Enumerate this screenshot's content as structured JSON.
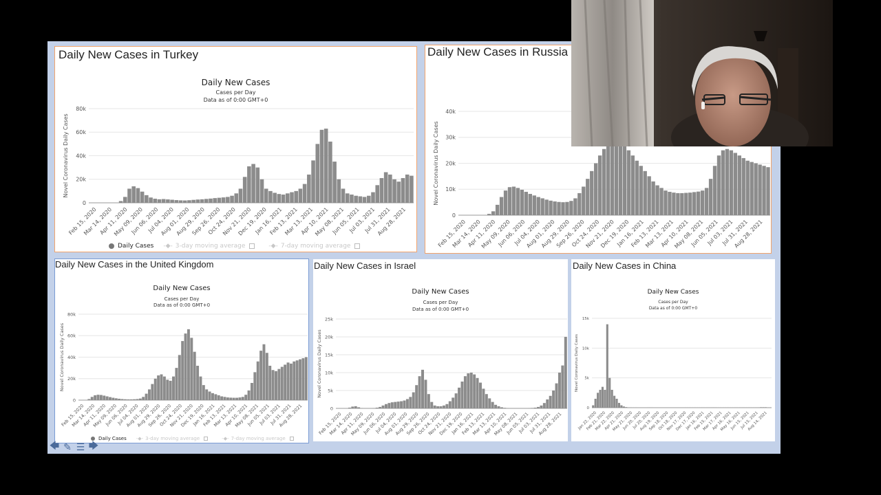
{
  "panels": [
    {
      "id": "turkey",
      "heading": "Daily New Cases in Turkey",
      "chart_title": "Daily New Cases",
      "chart_subtitle_1": "Cases per Day",
      "chart_subtitle_2": "Data as of 0:00 GMT+0",
      "legend": {
        "daily": "Daily Cases",
        "avg3": "3-day moving average",
        "avg7": "7-day moving average"
      }
    },
    {
      "id": "russia",
      "heading": "Daily New Cases in Russia"
    },
    {
      "id": "uk",
      "heading": "Daily New Cases in the United Kingdom",
      "chart_title": "Daily New Cases",
      "chart_subtitle_1": "Cases per Day",
      "chart_subtitle_2": "Data as of 0:00 GMT+0",
      "legend": {
        "daily": "Daily Cases",
        "avg3": "3-day moving average",
        "avg7": "7-day moving average"
      }
    },
    {
      "id": "israel",
      "heading": "Daily New Cases in Israel",
      "chart_title": "Daily New Cases",
      "chart_subtitle_1": "Cases per Day",
      "chart_subtitle_2": "Data as of 0:00 GMT+0"
    },
    {
      "id": "china",
      "heading": "Daily New Cases in China",
      "chart_title": "Daily New Cases",
      "chart_subtitle_1": "Cases per Day",
      "chart_subtitle_2": "Data as of 0:00 GMT+0"
    }
  ],
  "toolbar": {
    "icons": [
      "back-arrow-icon",
      "pen-icon",
      "slides-menu-icon",
      "forward-arrow-icon"
    ],
    "glyphs": [
      "🡄",
      "✎",
      "☰",
      "🡆"
    ]
  },
  "chart_data": [
    {
      "type": "bar",
      "ylabel": "Novel Coronavirus Daily Cases",
      "ylim": [
        0,
        80000
      ],
      "yticks": [
        "0",
        "20k",
        "40k",
        "60k",
        "80k"
      ],
      "x_ticks": [
        "Feb 15, 2020",
        "Mar 14, 2020",
        "Apr 11, 2020",
        "May 09, 2020",
        "Jun 06, 2020",
        "Jul 04, 2020",
        "Aug 01, 2020",
        "Aug 29, 2020",
        "Sep 26, 2020",
        "Oct 24, 2020",
        "Nov 21, 2020",
        "Dec 19, 2020",
        "Jan 16, 2021",
        "Feb 13, 2021",
        "Mar 13, 2021",
        "Apr 10, 2021",
        "May 08, 2021",
        "Jun 05, 2021",
        "Jul 03, 2021",
        "Jul 31, 2021",
        "Aug 28, 2021"
      ],
      "series": [
        {
          "name": "Daily Cases",
          "values": [
            0,
            0,
            0,
            0,
            0,
            0,
            0,
            1500,
            5000,
            12000,
            14000,
            12500,
            9500,
            6500,
            4500,
            3500,
            3000,
            3200,
            2900,
            2600,
            2300,
            2100,
            2000,
            2200,
            2500,
            2800,
            3000,
            3300,
            3600,
            4000,
            4300,
            4600,
            5000,
            6000,
            8000,
            12000,
            22000,
            31000,
            33000,
            30000,
            20000,
            12000,
            10000,
            8500,
            7500,
            7000,
            8000,
            9000,
            10000,
            12000,
            16000,
            24000,
            36000,
            50000,
            62000,
            63000,
            52000,
            35000,
            20000,
            12000,
            8000,
            7000,
            6000,
            5500,
            5000,
            6000,
            9000,
            15000,
            21000,
            26000,
            24000,
            20000,
            18000,
            21000,
            24000,
            23000
          ]
        }
      ]
    },
    {
      "type": "bar",
      "ylabel": "Novel Coronavirus Daily Cases",
      "ylim": [
        0,
        40000
      ],
      "yticks": [
        "0",
        "10k",
        "20k",
        "30k",
        "40k"
      ],
      "x_ticks": [
        "Feb 15, 2020",
        "Mar 14, 2020",
        "Apr 11, 2020",
        "May 09, 2020",
        "Jun 06, 2020",
        "Jul 04, 2020",
        "Aug 01, 2020",
        "Aug 29, 2020",
        "Sep 26, 2020",
        "Oct 24, 2020",
        "Nov 21, 2020",
        "Dec 19, 2020",
        "Jan 16, 2021",
        "Feb 13, 2021",
        "Mar 13, 2021",
        "Apr 10, 2021",
        "May 08, 2021",
        "Jun 05, 2021",
        "Jul 03, 2021",
        "Jul 31, 2021",
        "Aug 28, 2021"
      ],
      "series": [
        {
          "name": "Daily Cases",
          "values": [
            0,
            0,
            0,
            0,
            0,
            0,
            0,
            500,
            1500,
            4000,
            7000,
            9500,
            10800,
            11000,
            10500,
            9800,
            9000,
            8200,
            7600,
            7000,
            6500,
            6000,
            5600,
            5300,
            5100,
            5000,
            5100,
            5500,
            6500,
            8500,
            11000,
            14000,
            17000,
            20000,
            23000,
            25500,
            27500,
            28500,
            28800,
            28500,
            27000,
            25000,
            23000,
            21000,
            19000,
            17000,
            15000,
            13000,
            11500,
            10500,
            9500,
            9000,
            8700,
            8500,
            8500,
            8600,
            8700,
            8900,
            9100,
            9500,
            10500,
            14000,
            19000,
            23000,
            25000,
            25500,
            25000,
            24000,
            23000,
            22000,
            21000,
            20500,
            20000,
            19500,
            19000,
            18500
          ]
        }
      ]
    },
    {
      "type": "bar",
      "ylabel": "Novel Coronavirus Daily Cases",
      "ylim": [
        0,
        80000
      ],
      "yticks": [
        "0",
        "20k",
        "40k",
        "60k",
        "80k"
      ],
      "x_ticks": [
        "Feb 15, 2020",
        "Mar 14, 2020",
        "Apr 11, 2020",
        "May 09, 2020",
        "Jun 06, 2020",
        "Jul 04, 2020",
        "Aug 01, 2020",
        "Aug 29, 2020",
        "Sep 26, 2020",
        "Oct 24, 2020",
        "Nov 21, 2020",
        "Dec 19, 2020",
        "Jan 16, 2021",
        "Feb 13, 2021",
        "Mar 13, 2021",
        "Apr 10, 2021",
        "May 08, 2021",
        "Jun 05, 2021",
        "Jul 03, 2021",
        "Jul 31, 2021",
        "Aug 28, 2021"
      ],
      "series": [
        {
          "name": "Daily Cases",
          "values": [
            0,
            0,
            0,
            1000,
            3000,
            4500,
            5000,
            4800,
            4200,
            3500,
            2800,
            2200,
            1700,
            1300,
            1000,
            800,
            700,
            700,
            800,
            1000,
            1500,
            3000,
            6000,
            10000,
            15000,
            20000,
            23000,
            24000,
            22000,
            19000,
            18000,
            22000,
            30000,
            42000,
            55000,
            62000,
            66000,
            58000,
            45000,
            32000,
            22000,
            14000,
            10000,
            8000,
            6500,
            5500,
            4500,
            3500,
            3000,
            2500,
            2300,
            2200,
            2200,
            2500,
            3000,
            5000,
            9000,
            16000,
            26000,
            36000,
            46000,
            52000,
            44000,
            32000,
            28000,
            27000,
            29000,
            31000,
            33000,
            35000,
            34000,
            36000,
            37000,
            38000,
            39000,
            40000
          ]
        }
      ]
    },
    {
      "type": "bar",
      "ylabel": "Novel Coronavirus Daily Cases",
      "ylim": [
        0,
        25000
      ],
      "yticks": [
        "0",
        "5k",
        "10k",
        "15k",
        "20k",
        "25k"
      ],
      "x_ticks": [
        "Feb 15, 2020",
        "Mar 14, 2020",
        "Apr 11, 2020",
        "May 09, 2020",
        "Jun 06, 2020",
        "Jul 04, 2020",
        "Aug 01, 2020",
        "Aug 29, 2020",
        "Sep 26, 2020",
        "Oct 24, 2020",
        "Nov 21, 2020",
        "Dec 19, 2020",
        "Jan 16, 2021",
        "Feb 13, 2021",
        "Mar 13, 2021",
        "Apr 10, 2021",
        "May 08, 2021",
        "Jun 05, 2021",
        "Jul 03, 2021",
        "Jul 31, 2021",
        "Aug 28, 2021"
      ],
      "series": [
        {
          "name": "Daily Cases",
          "values": [
            0,
            0,
            0,
            0,
            200,
            500,
            600,
            300,
            100,
            50,
            50,
            50,
            100,
            200,
            400,
            800,
            1200,
            1500,
            1700,
            1800,
            1900,
            2000,
            2200,
            2600,
            3200,
            4500,
            6500,
            9000,
            10800,
            8000,
            4000,
            1800,
            800,
            600,
            600,
            800,
            1200,
            2000,
            3000,
            4200,
            5800,
            7500,
            9000,
            9800,
            10000,
            9500,
            8500,
            7200,
            5500,
            4000,
            2800,
            1800,
            1000,
            600,
            300,
            150,
            80,
            50,
            40,
            40,
            40,
            50,
            60,
            80,
            120,
            200,
            400,
            800,
            1500,
            2500,
            3500,
            5000,
            7000,
            10000,
            12000,
            20000
          ]
        }
      ]
    },
    {
      "type": "bar",
      "ylabel": "Novel Coronavirus Daily Cases",
      "ylim": [
        0,
        15000
      ],
      "yticks": [
        "0",
        "5k",
        "10k",
        "15k"
      ],
      "x_ticks": [
        "Jan 22, 2020",
        "Feb 21, 2020",
        "Mar 22, 2020",
        "Apr 21, 2020",
        "May 21, 2020",
        "Jun 20, 2020",
        "Jul 20, 2020",
        "Aug 19, 2020",
        "Sep 18, 2020",
        "Oct 18, 2020",
        "Nov 17, 2020",
        "Dec 17, 2020",
        "Jan 16, 2021",
        "Feb 15, 2021",
        "Mar 17, 2021",
        "Apr 16, 2021",
        "May 16, 2021",
        "Jun 15, 2021",
        "Jul 15, 2021",
        "Aug 14, 2021"
      ],
      "series": [
        {
          "name": "Daily Cases",
          "values": [
            400,
            1500,
            2500,
            3000,
            3500,
            3000,
            14000,
            5000,
            3000,
            2000,
            1500,
            800,
            400,
            200,
            100,
            60,
            40,
            30,
            30,
            20,
            20,
            20,
            20,
            30,
            50,
            30,
            20,
            20,
            20,
            20,
            20,
            20,
            20,
            20,
            20,
            20,
            20,
            20,
            20,
            30,
            30,
            30,
            30,
            30,
            30,
            30,
            40,
            30,
            30,
            30,
            40,
            60,
            40,
            30,
            30,
            30,
            30,
            30,
            30,
            30,
            30,
            30,
            40,
            40,
            40,
            40,
            40,
            40,
            40,
            50,
            60,
            80,
            80,
            80,
            60,
            50
          ]
        }
      ]
    }
  ]
}
